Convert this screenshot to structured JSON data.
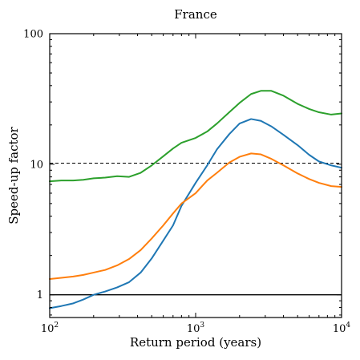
{
  "chart_data": {
    "type": "line",
    "title": "France",
    "xlabel": "Return period (years)",
    "ylabel": "Speed-up factor",
    "x_scale": "log",
    "y_scale": "log",
    "xlim": [
      100,
      10000
    ],
    "ylim": [
      0.67,
      100
    ],
    "x_ticks": [
      {
        "value": 100,
        "base": "10",
        "exp": "2"
      },
      {
        "value": 1000,
        "base": "10",
        "exp": "3"
      },
      {
        "value": 10000,
        "base": "10",
        "exp": "4"
      }
    ],
    "y_ticks": [
      {
        "value": 1,
        "label": "1"
      },
      {
        "value": 10,
        "label": "10"
      },
      {
        "value": 100,
        "label": "100"
      }
    ],
    "grid": false,
    "reference_lines": [
      {
        "y": 10.2,
        "style": "dashed",
        "color": "#000000"
      },
      {
        "y": 1.0,
        "style": "solid",
        "color": "#000000"
      }
    ],
    "series": [
      {
        "color": "#1f77b4",
        "x": [
          100,
          120,
          145,
          170,
          200,
          240,
          290,
          350,
          420,
          500,
          600,
          700,
          800,
          1000,
          1200,
          1400,
          1700,
          2000,
          2400,
          2800,
          3300,
          4000,
          5000,
          6000,
          7000,
          8500,
          10000
        ],
        "y": [
          0.79,
          0.82,
          0.86,
          0.92,
          1.0,
          1.06,
          1.14,
          1.25,
          1.48,
          1.9,
          2.6,
          3.4,
          4.8,
          7.2,
          9.8,
          13.0,
          17.0,
          20.5,
          22.2,
          21.5,
          19.5,
          16.8,
          14.0,
          11.8,
          10.5,
          9.8,
          9.4
        ]
      },
      {
        "color": "#ff7f0e",
        "x": [
          100,
          120,
          145,
          170,
          200,
          240,
          290,
          350,
          420,
          500,
          600,
          700,
          800,
          1000,
          1200,
          1400,
          1700,
          2000,
          2400,
          2800,
          3300,
          4000,
          5000,
          6000,
          7000,
          8500,
          10000
        ],
        "y": [
          1.32,
          1.35,
          1.38,
          1.42,
          1.48,
          1.55,
          1.68,
          1.88,
          2.2,
          2.7,
          3.4,
          4.2,
          5.0,
          6.0,
          7.5,
          8.6,
          10.3,
          11.4,
          12.1,
          11.9,
          11.0,
          9.8,
          8.5,
          7.7,
          7.2,
          6.8,
          6.7
        ]
      },
      {
        "color": "#2ca02c",
        "x": [
          100,
          120,
          145,
          170,
          200,
          240,
          290,
          350,
          420,
          500,
          600,
          700,
          800,
          1000,
          1200,
          1400,
          1700,
          2000,
          2400,
          2800,
          3300,
          4000,
          5000,
          6000,
          7000,
          8500,
          10000
        ],
        "y": [
          7.4,
          7.5,
          7.5,
          7.6,
          7.8,
          7.9,
          8.1,
          8.0,
          8.6,
          9.8,
          11.5,
          13.2,
          14.6,
          15.9,
          17.8,
          20.5,
          25.0,
          29.5,
          34.5,
          36.5,
          36.5,
          33.5,
          29.0,
          26.5,
          25.0,
          24.0,
          24.5
        ]
      }
    ]
  }
}
